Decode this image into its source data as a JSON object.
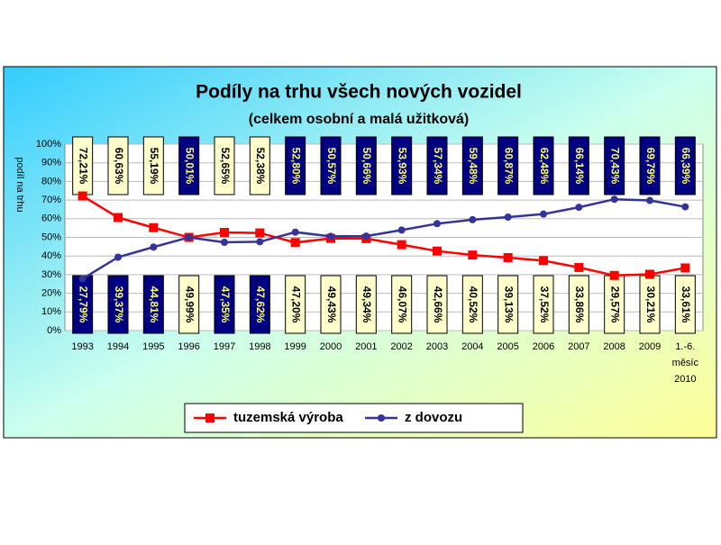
{
  "chart_data": {
    "type": "line",
    "title": "Podíly na trhu všech nových vozidel",
    "subtitle": "(celkem osobní a malá užitková)",
    "y_label": "podíl na trhu",
    "categories": [
      "1993",
      "1994",
      "1995",
      "1996",
      "1997",
      "1998",
      "1999",
      "2000",
      "2001",
      "2002",
      "2003",
      "2004",
      "2005",
      "2006",
      "2007",
      "2008",
      "2009",
      "1.-6. měsíc 2010"
    ],
    "series": [
      {
        "name": "tuzemská výroba",
        "color": "#ff0000",
        "label_box": "#ffffcc",
        "values": [
          72.21,
          60.63,
          55.19,
          49.99,
          52.65,
          52.38,
          47.2,
          49.43,
          49.34,
          46.07,
          42.66,
          40.52,
          39.13,
          37.52,
          33.86,
          29.57,
          30.21,
          33.61
        ],
        "value_labels": [
          "72,21%",
          "60,63%",
          "55,19%",
          "49,99%",
          "52,65%",
          "52,38%",
          "47,20%",
          "49,43%",
          "49,34%",
          "46,07%",
          "42,66%",
          "40,52%",
          "39,13%",
          "37,52%",
          "33,86%",
          "29,57%",
          "30,21%",
          "33,61%"
        ]
      },
      {
        "name": "z dovozu",
        "color": "#333399",
        "label_box": "#000080",
        "values": [
          27.79,
          39.37,
          44.81,
          50.01,
          47.35,
          47.62,
          52.8,
          50.57,
          50.66,
          53.93,
          57.34,
          59.48,
          60.87,
          62.48,
          66.14,
          70.43,
          69.79,
          66.39
        ],
        "value_labels": [
          "27,79%",
          "39,37%",
          "44,81%",
          "50,01%",
          "47,35%",
          "47,62%",
          "52,80%",
          "50,57%",
          "50,66%",
          "53,93%",
          "57,34%",
          "59,48%",
          "60,87%",
          "62,48%",
          "66,14%",
          "70,43%",
          "69,79%",
          "66,39%"
        ]
      }
    ],
    "ylim": [
      0,
      100
    ],
    "yticks": [
      {
        "value": 0,
        "label": "0%"
      },
      {
        "value": 10,
        "label": "10%"
      },
      {
        "value": 20,
        "label": "20%"
      },
      {
        "value": 30,
        "label": "30%"
      },
      {
        "value": 40,
        "label": "40%"
      },
      {
        "value": 50,
        "label": "50%"
      },
      {
        "value": 60,
        "label": "60%"
      },
      {
        "value": 70,
        "label": "70%"
      },
      {
        "value": 80,
        "label": "80%"
      },
      {
        "value": 90,
        "label": "90%"
      },
      {
        "value": 100,
        "label": "100%"
      }
    ],
    "grid": true,
    "legend": "bottom"
  }
}
